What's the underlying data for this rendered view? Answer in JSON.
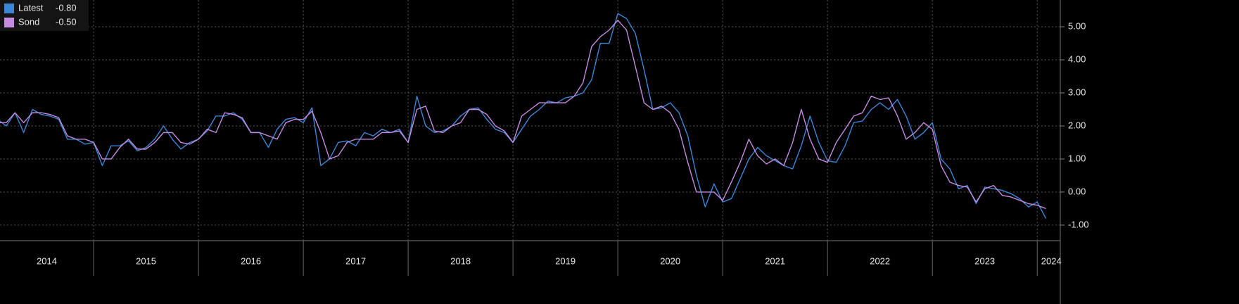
{
  "chart_data": {
    "type": "line",
    "xlim": [
      2014.107,
      2024.22
    ],
    "ylim": [
      -1.47,
      5.81
    ],
    "grid": true,
    "legend": "upper left",
    "xticks": [
      {
        "value": 2014,
        "label": "2014"
      },
      {
        "value": 2015,
        "label": "2015"
      },
      {
        "value": 2016,
        "label": "2016"
      },
      {
        "value": 2017,
        "label": "2017"
      },
      {
        "value": 2018,
        "label": "2018"
      },
      {
        "value": 2019,
        "label": "2019"
      },
      {
        "value": 2020,
        "label": "2020"
      },
      {
        "value": 2021,
        "label": "2021"
      },
      {
        "value": 2022,
        "label": "2022"
      },
      {
        "value": 2023,
        "label": "2023"
      },
      {
        "value": 2024,
        "label": "2024"
      }
    ],
    "yticks": [
      {
        "value": -1,
        "label": "-1.00"
      },
      {
        "value": 0,
        "label": "0.00"
      },
      {
        "value": 1,
        "label": "1.00"
      },
      {
        "value": 2,
        "label": "2.00"
      },
      {
        "value": 3,
        "label": "3.00"
      },
      {
        "value": 4,
        "label": "4.00"
      },
      {
        "value": 5,
        "label": "5.00"
      }
    ],
    "x": [
      2014.083,
      2014.167,
      2014.25,
      2014.333,
      2014.417,
      2014.5,
      2014.583,
      2014.667,
      2014.75,
      2014.833,
      2014.917,
      2015.0,
      2015.083,
      2015.167,
      2015.25,
      2015.333,
      2015.417,
      2015.5,
      2015.583,
      2015.667,
      2015.75,
      2015.833,
      2015.917,
      2016.0,
      2016.083,
      2016.167,
      2016.25,
      2016.333,
      2016.417,
      2016.5,
      2016.583,
      2016.667,
      2016.75,
      2016.833,
      2016.917,
      2017.0,
      2017.083,
      2017.167,
      2017.25,
      2017.333,
      2017.417,
      2017.5,
      2017.583,
      2017.667,
      2017.75,
      2017.833,
      2017.917,
      2018.0,
      2018.083,
      2018.167,
      2018.25,
      2018.333,
      2018.417,
      2018.5,
      2018.583,
      2018.667,
      2018.75,
      2018.833,
      2018.917,
      2019.0,
      2019.083,
      2019.167,
      2019.25,
      2019.333,
      2019.417,
      2019.5,
      2019.583,
      2019.667,
      2019.75,
      2019.833,
      2019.917,
      2020.0,
      2020.083,
      2020.167,
      2020.25,
      2020.333,
      2020.417,
      2020.5,
      2020.583,
      2020.667,
      2020.75,
      2020.833,
      2020.917,
      2021.0,
      2021.083,
      2021.167,
      2021.25,
      2021.333,
      2021.417,
      2021.5,
      2021.583,
      2021.667,
      2021.75,
      2021.833,
      2021.917,
      2022.0,
      2022.083,
      2022.167,
      2022.25,
      2022.333,
      2022.417,
      2022.5,
      2022.583,
      2022.667,
      2022.75,
      2022.833,
      2022.917,
      2023.0,
      2023.083,
      2023.167,
      2023.25,
      2023.333,
      2023.417,
      2023.5,
      2023.583,
      2023.667,
      2023.75,
      2023.833,
      2023.917,
      2024.0,
      2024.083
    ],
    "series": [
      {
        "name": "Latest",
        "color": "#3a86d6",
        "last_value_label": "-0.80",
        "values": [
          2.2,
          2.0,
          2.4,
          1.8,
          2.5,
          2.35,
          2.3,
          2.2,
          1.6,
          1.6,
          1.45,
          1.5,
          0.8,
          1.4,
          1.4,
          1.55,
          1.25,
          1.35,
          1.6,
          2.0,
          1.6,
          1.3,
          1.5,
          1.6,
          1.85,
          2.3,
          2.3,
          2.4,
          2.2,
          1.8,
          1.8,
          1.35,
          1.9,
          2.2,
          2.25,
          2.1,
          2.55,
          0.8,
          1.0,
          1.5,
          1.55,
          1.4,
          1.8,
          1.7,
          1.9,
          1.8,
          1.9,
          1.5,
          2.9,
          2.0,
          1.8,
          1.85,
          2.0,
          2.3,
          2.5,
          2.55,
          2.2,
          1.9,
          1.8,
          1.5,
          1.9,
          2.3,
          2.5,
          2.75,
          2.7,
          2.85,
          2.9,
          3.0,
          3.4,
          4.5,
          4.5,
          5.4,
          5.25,
          4.8,
          3.7,
          2.5,
          2.55,
          2.7,
          2.4,
          1.7,
          0.5,
          -0.45,
          0.25,
          -0.3,
          -0.2,
          0.4,
          1.0,
          1.35,
          1.1,
          0.95,
          0.8,
          0.7,
          1.4,
          2.3,
          1.5,
          0.95,
          0.9,
          1.4,
          2.1,
          2.15,
          2.5,
          2.7,
          2.5,
          2.8,
          2.3,
          1.6,
          1.8,
          2.1,
          1.0,
          0.7,
          0.1,
          0.2,
          -0.35,
          0.15,
          0.1,
          0.05,
          -0.05,
          -0.2,
          -0.45,
          -0.3,
          -0.8
        ]
      },
      {
        "name": "Sond",
        "color": "#c58be0",
        "last_value_label": "-0.50",
        "values": [
          2.1,
          2.1,
          2.4,
          2.1,
          2.4,
          2.4,
          2.35,
          2.25,
          1.7,
          1.6,
          1.6,
          1.5,
          1.0,
          1.0,
          1.35,
          1.6,
          1.3,
          1.3,
          1.5,
          1.8,
          1.8,
          1.5,
          1.45,
          1.6,
          1.9,
          1.8,
          2.4,
          2.35,
          2.25,
          1.8,
          1.8,
          1.7,
          1.6,
          2.1,
          2.2,
          2.2,
          2.45,
          1.8,
          1.0,
          1.1,
          1.5,
          1.6,
          1.6,
          1.6,
          1.8,
          1.8,
          1.85,
          1.5,
          2.5,
          2.6,
          1.85,
          1.8,
          2.0,
          2.1,
          2.5,
          2.5,
          2.35,
          2.0,
          1.85,
          1.5,
          2.3,
          2.5,
          2.7,
          2.7,
          2.7,
          2.7,
          2.9,
          3.3,
          4.4,
          4.7,
          4.9,
          5.2,
          4.9,
          3.8,
          2.7,
          2.5,
          2.6,
          2.4,
          1.9,
          0.9,
          0.0,
          0.0,
          0.0,
          -0.25,
          0.3,
          0.9,
          1.6,
          1.1,
          0.85,
          1.0,
          0.8,
          1.5,
          2.5,
          1.6,
          1.0,
          0.9,
          1.5,
          1.9,
          2.3,
          2.4,
          2.9,
          2.8,
          2.85,
          2.3,
          1.6,
          1.8,
          2.1,
          1.9,
          0.8,
          0.3,
          0.2,
          0.15,
          -0.3,
          0.1,
          0.2,
          -0.1,
          -0.15,
          -0.25,
          -0.35,
          -0.4,
          -0.5
        ]
      }
    ]
  }
}
